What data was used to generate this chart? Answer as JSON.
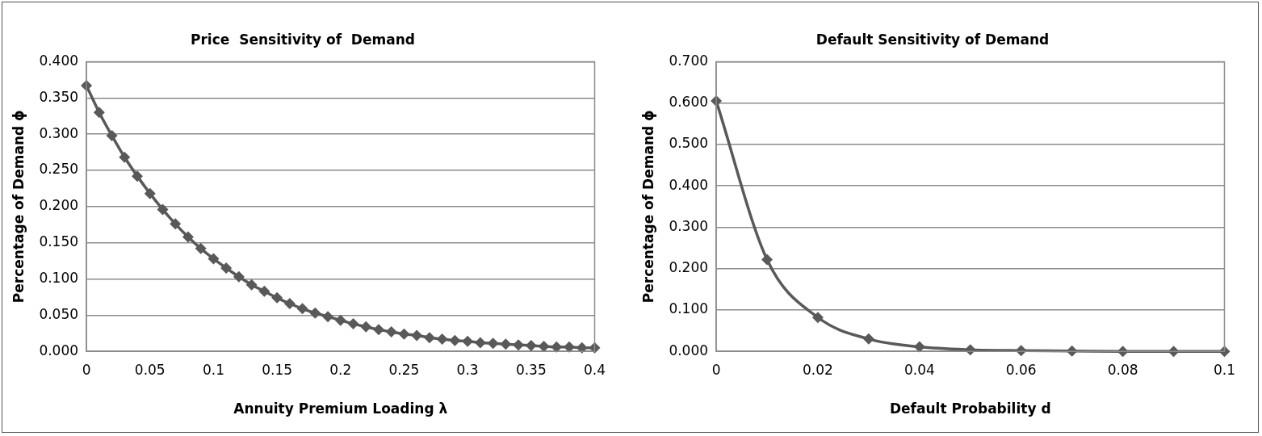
{
  "chart_data": [
    {
      "type": "line",
      "title": "Price  Sensitivity of  Demand",
      "xlabel": "Annuity Premium Loading λ",
      "ylabel": "Percentage of Demand ϕ",
      "x": [
        0,
        0.01,
        0.02,
        0.03,
        0.04,
        0.05,
        0.06,
        0.07,
        0.08,
        0.09,
        0.1,
        0.11,
        0.12,
        0.13,
        0.14,
        0.15,
        0.16,
        0.17,
        0.18,
        0.19,
        0.2,
        0.21,
        0.22,
        0.23,
        0.24,
        0.25,
        0.26,
        0.27,
        0.28,
        0.29,
        0.3,
        0.31,
        0.32,
        0.33,
        0.34,
        0.35,
        0.36,
        0.37,
        0.38,
        0.39,
        0.4
      ],
      "series": [
        {
          "color": "#595959",
          "values": [
            0.367,
            0.33,
            0.298,
            0.268,
            0.242,
            0.218,
            0.196,
            0.176,
            0.158,
            0.142,
            0.128,
            0.115,
            0.103,
            0.092,
            0.083,
            0.074,
            0.066,
            0.059,
            0.053,
            0.048,
            0.043,
            0.038,
            0.034,
            0.03,
            0.027,
            0.024,
            0.022,
            0.019,
            0.017,
            0.015,
            0.014,
            0.012,
            0.011,
            0.01,
            0.009,
            0.008,
            0.007,
            0.006,
            0.006,
            0.005,
            0.005
          ]
        }
      ],
      "xlim": [
        0,
        0.4
      ],
      "xticks": [
        0,
        0.05,
        0.1,
        0.15,
        0.2,
        0.25,
        0.3,
        0.35,
        0.4
      ],
      "ylim": [
        0,
        0.4
      ],
      "yticks": [
        {
          "value": 0,
          "label": "0.000"
        },
        {
          "value": 0.05,
          "label": "0.050"
        },
        {
          "value": 0.1,
          "label": "0.100"
        },
        {
          "value": 0.15,
          "label": "0.150"
        },
        {
          "value": 0.2,
          "label": "0.200"
        },
        {
          "value": 0.25,
          "label": "0.250"
        },
        {
          "value": 0.3,
          "label": "0.300"
        },
        {
          "value": 0.35,
          "label": "0.350"
        },
        {
          "value": 0.4,
          "label": "0.400"
        }
      ],
      "grid": "y",
      "legend": false,
      "marker": "diamond",
      "line_style": "solid"
    },
    {
      "type": "line",
      "title": "Default Sensitivity of Demand",
      "xlabel": "Default Probability d",
      "ylabel": "Percentage of Demand ϕ",
      "x": [
        0,
        0.01,
        0.02,
        0.03,
        0.04,
        0.05,
        0.06,
        0.07,
        0.08,
        0.09,
        0.1
      ],
      "series": [
        {
          "color": "#595959",
          "values": [
            0.605,
            0.222,
            0.082,
            0.03,
            0.011,
            0.004,
            0.002,
            0.001,
            0,
            0,
            0
          ]
        }
      ],
      "xlim": [
        0,
        0.1
      ],
      "xticks": [
        0,
        0.02,
        0.04,
        0.06,
        0.08,
        0.1
      ],
      "ylim": [
        0,
        0.7
      ],
      "yticks": [
        {
          "value": 0,
          "label": "0.000"
        },
        {
          "value": 0.1,
          "label": "0.100"
        },
        {
          "value": 0.2,
          "label": "0.200"
        },
        {
          "value": 0.3,
          "label": "0.300"
        },
        {
          "value": 0.4,
          "label": "0.400"
        },
        {
          "value": 0.5,
          "label": "0.500"
        },
        {
          "value": 0.6,
          "label": "0.600"
        },
        {
          "value": 0.7,
          "label": "0.700"
        }
      ],
      "grid": "y",
      "legend": false,
      "marker": "diamond",
      "line_style": "solid"
    }
  ]
}
